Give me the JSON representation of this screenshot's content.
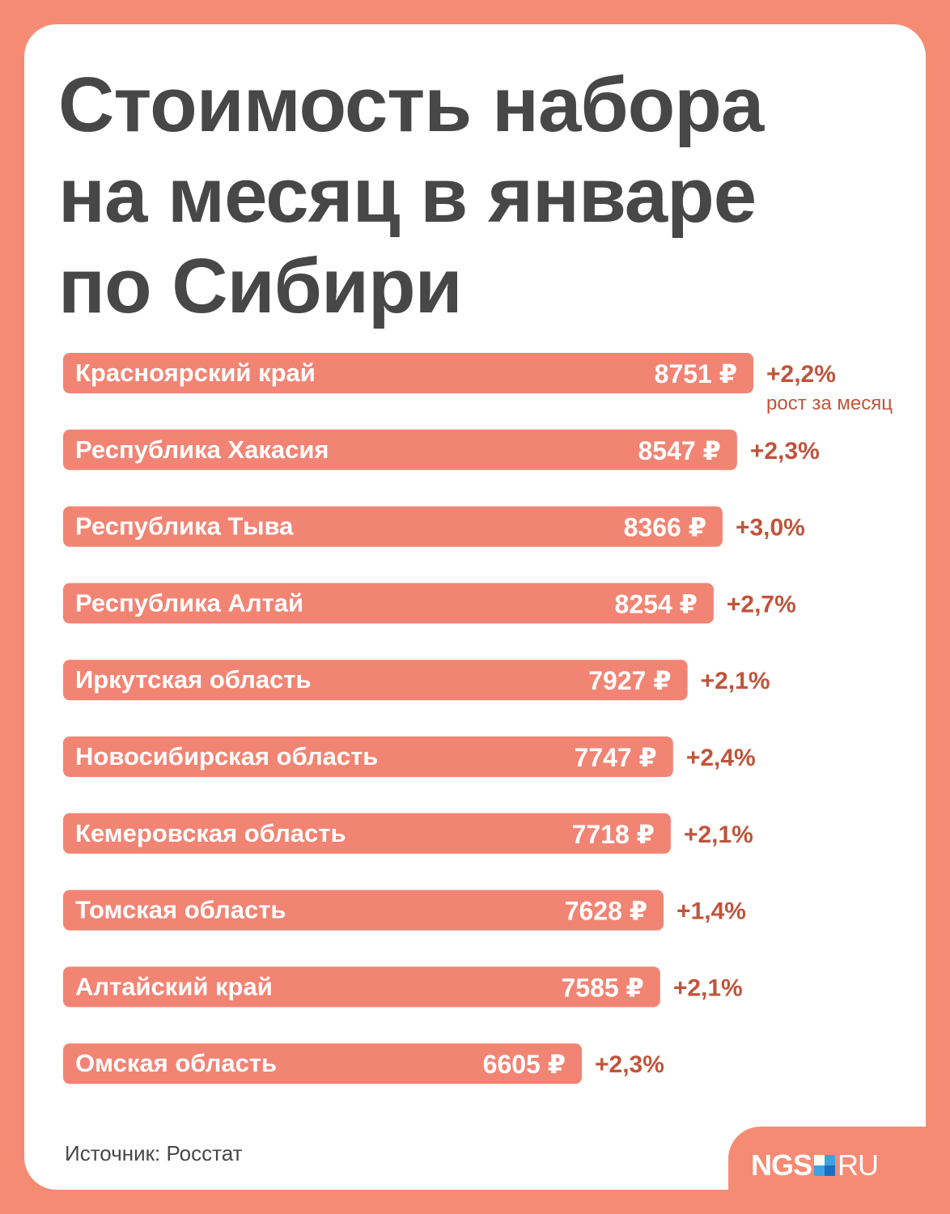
{
  "title_lines": [
    "Стоимость набора",
    "на месяц в январе",
    "по Сибири"
  ],
  "source": "Источник: Росстат",
  "logo": {
    "left": "NGS",
    "right": "RU"
  },
  "colors": {
    "background": "#F68B74",
    "bar": "#F28474",
    "change_text": "#C0543B",
    "title": "#474747"
  },
  "chart_data": {
    "type": "bar",
    "orientation": "horizontal",
    "title": "Стоимость набора на месяц в январе по Сибири",
    "currency": "₽",
    "change_caption": "рост за месяц",
    "categories": [
      "Красноярский край",
      "Республика Хакасия",
      "Республика Тыва",
      "Республика Алтай",
      "Иркутская область",
      "Новосибирская область",
      "Кемеровская область",
      "Томская область",
      "Алтайский край",
      "Омская область"
    ],
    "values": [
      8751,
      8547,
      8366,
      8254,
      7927,
      7747,
      7718,
      7628,
      7585,
      6605
    ],
    "value_labels": [
      "8751 ₽",
      "8547 ₽",
      "8366 ₽",
      "8254 ₽",
      "7927 ₽",
      "7747 ₽",
      "7718 ₽",
      "7628 ₽",
      "7585 ₽",
      "6605 ₽"
    ],
    "changes": [
      "+2,2%",
      "+2,3%",
      "+3,0%",
      "+2,7%",
      "+2,1%",
      "+2,4%",
      "+2,1%",
      "+1,4%",
      "+2,1%",
      "+2,3%"
    ]
  }
}
